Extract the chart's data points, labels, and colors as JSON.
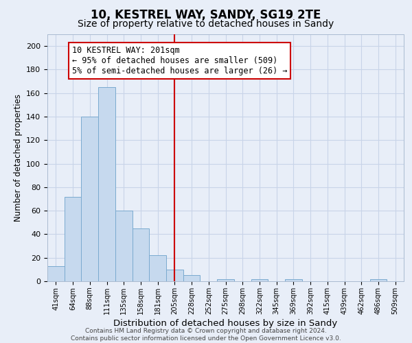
{
  "title": "10, KESTREL WAY, SANDY, SG19 2TE",
  "subtitle": "Size of property relative to detached houses in Sandy",
  "xlabel": "Distribution of detached houses by size in Sandy",
  "ylabel": "Number of detached properties",
  "bar_labels": [
    "41sqm",
    "64sqm",
    "88sqm",
    "111sqm",
    "135sqm",
    "158sqm",
    "181sqm",
    "205sqm",
    "228sqm",
    "252sqm",
    "275sqm",
    "298sqm",
    "322sqm",
    "345sqm",
    "369sqm",
    "392sqm",
    "415sqm",
    "439sqm",
    "462sqm",
    "486sqm",
    "509sqm"
  ],
  "bar_values": [
    13,
    72,
    140,
    165,
    60,
    45,
    22,
    10,
    5,
    0,
    2,
    0,
    2,
    0,
    2,
    0,
    0,
    0,
    0,
    2,
    0
  ],
  "bar_color": "#c6d9ee",
  "bar_edge_color": "#7aaacf",
  "vline_x_index": 7,
  "vline_color": "#cc0000",
  "annotation_line1": "10 KESTREL WAY: 201sqm",
  "annotation_line2": "← 95% of detached houses are smaller (509)",
  "annotation_line3": "5% of semi-detached houses are larger (26) →",
  "ylim": [
    0,
    210
  ],
  "yticks": [
    0,
    20,
    40,
    60,
    80,
    100,
    120,
    140,
    160,
    180,
    200
  ],
  "grid_color": "#c8d4e8",
  "background_color": "#e8eef8",
  "footer_text": "Contains HM Land Registry data © Crown copyright and database right 2024.\nContains public sector information licensed under the Open Government Licence v3.0.",
  "title_fontsize": 12,
  "subtitle_fontsize": 10,
  "xlabel_fontsize": 9.5,
  "ylabel_fontsize": 8.5,
  "annotation_fontsize": 8.5,
  "footer_fontsize": 6.5
}
